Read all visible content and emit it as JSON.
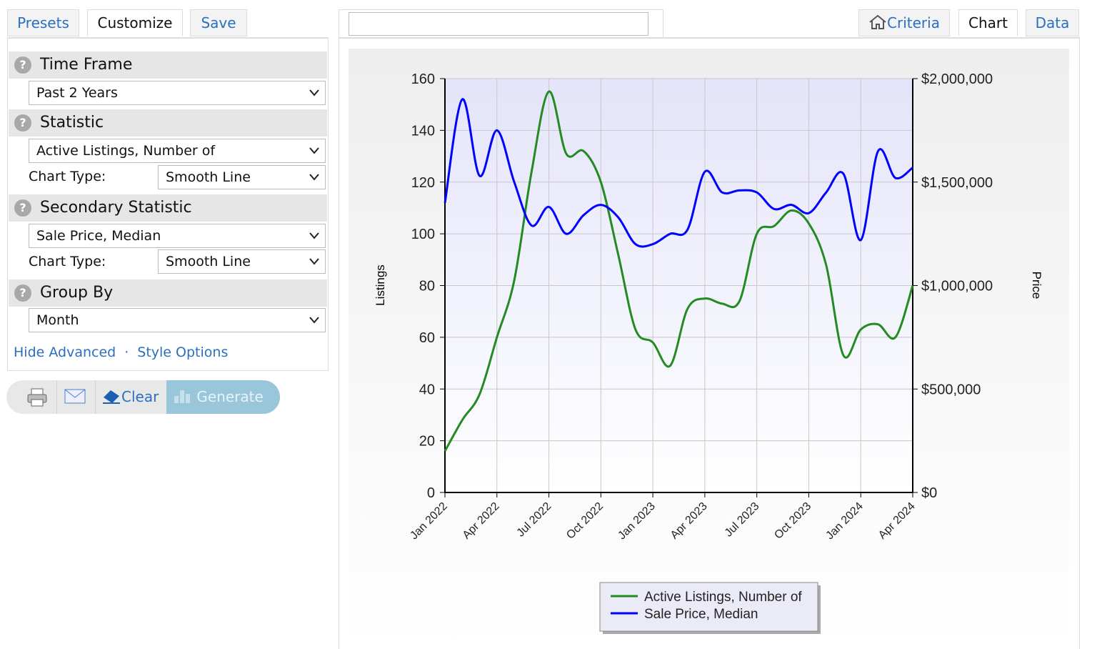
{
  "ui": {
    "left_tabs": [
      "Presets",
      "Customize",
      "Save"
    ],
    "sections": [
      {
        "title": "Time Frame",
        "selected": "Past 2 Years"
      },
      {
        "title": "Statistic",
        "selected": "Active Listings, Number of",
        "chart_type_label": "Chart Type:",
        "chart_type": "Smooth Line"
      },
      {
        "title": "Secondary Statistic",
        "selected": "Sale Price, Median",
        "chart_type_label": "Chart Type:",
        "chart_type": "Smooth Line"
      },
      {
        "title": "Group By",
        "selected": "Month"
      }
    ],
    "links": [
      "Hide Advanced",
      "Style Options"
    ],
    "link_separator": "·",
    "actions": [
      "Clear",
      "Generate"
    ],
    "right_tabs": [
      "Criteria",
      "Chart",
      "Data"
    ]
  },
  "chart_data": {
    "type": "line",
    "smooth": true,
    "y_label": "Listings",
    "y2_label": "Price",
    "categories": [
      "Jan 2022",
      null,
      null,
      "Apr 2022",
      null,
      null,
      "Jul 2022",
      null,
      null,
      "Oct 2022",
      null,
      null,
      "Jan 2023",
      null,
      null,
      "Apr 2023",
      null,
      null,
      "Jul 2023",
      null,
      null,
      "Oct 2023",
      null,
      null,
      "Jan 2024",
      null,
      null,
      "Apr 2024"
    ],
    "series": [
      {
        "name": "Active Listings, Number of",
        "color": "#228b22",
        "values": [
          16,
          28,
          38,
          60,
          82,
          124,
          155,
          131,
          132,
          120,
          92,
          63,
          58,
          49,
          71,
          75,
          73,
          74,
          100,
          103,
          109,
          104,
          88,
          53,
          63,
          65,
          60,
          80
        ]
      },
      {
        "name": "Sale Price, Median",
        "color": "#0000ff",
        "axis": "y2",
        "values": [
          1400000,
          1900000,
          1530000,
          1750000,
          1500000,
          1290000,
          1380000,
          1250000,
          1340000,
          1390000,
          1330000,
          1200000,
          1200000,
          1250000,
          1270000,
          1550000,
          1450000,
          1460000,
          1450000,
          1370000,
          1390000,
          1350000,
          1450000,
          1540000,
          1220000,
          1650000,
          1520000,
          1570000
        ]
      }
    ],
    "ylim": [
      0,
      160
    ],
    "yticks": [
      0,
      20,
      40,
      60,
      80,
      100,
      120,
      140,
      160
    ],
    "y2lim": [
      0,
      2000000
    ],
    "y2ticks": [
      {
        "value": 0,
        "label": "$0"
      },
      {
        "value": 500000,
        "label": "$500,000"
      },
      {
        "value": 1000000,
        "label": "$1,000,000"
      },
      {
        "value": 1500000,
        "label": "$1,500,000"
      },
      {
        "value": 2000000,
        "label": "$2,000,000"
      }
    ],
    "grid": true,
    "legend": "bottom"
  }
}
